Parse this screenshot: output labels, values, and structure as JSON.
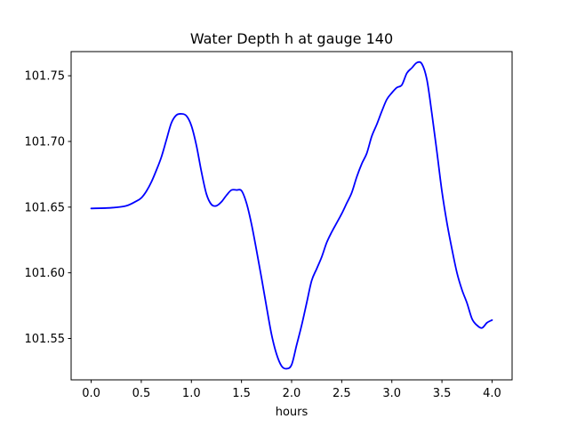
{
  "chart_data": {
    "type": "line",
    "title": "Water Depth h at gauge 140",
    "xlabel": "hours",
    "ylabel": "",
    "xlim": [
      -0.2,
      4.2
    ],
    "ylim": [
      101.5185,
      101.7684
    ],
    "x_ticks": [
      0.0,
      0.5,
      1.0,
      1.5,
      2.0,
      2.5,
      3.0,
      3.5,
      4.0
    ],
    "x_tick_labels": [
      "0.0",
      "0.5",
      "1.0",
      "1.5",
      "2.0",
      "2.5",
      "3.0",
      "3.5",
      "4.0"
    ],
    "y_ticks": [
      101.55,
      101.6,
      101.65,
      101.7,
      101.75
    ],
    "y_tick_labels": [
      "101.55",
      "101.60",
      "101.65",
      "101.70",
      "101.75"
    ],
    "grid": false,
    "series": [
      {
        "color": "#0000ff",
        "x": [
          0.0,
          0.2,
          0.35,
          0.45,
          0.5,
          0.55,
          0.6,
          0.65,
          0.7,
          0.75,
          0.8,
          0.85,
          0.9,
          0.95,
          1.0,
          1.05,
          1.1,
          1.15,
          1.2,
          1.25,
          1.3,
          1.35,
          1.4,
          1.45,
          1.5,
          1.55,
          1.6,
          1.65,
          1.7,
          1.75,
          1.8,
          1.85,
          1.9,
          1.95,
          2.0,
          2.05,
          2.1,
          2.15,
          2.2,
          2.25,
          2.3,
          2.35,
          2.4,
          2.45,
          2.5,
          2.55,
          2.6,
          2.65,
          2.7,
          2.75,
          2.8,
          2.85,
          2.9,
          2.95,
          3.0,
          3.05,
          3.1,
          3.15,
          3.2,
          3.25,
          3.3,
          3.35,
          3.4,
          3.45,
          3.5,
          3.55,
          3.6,
          3.65,
          3.7,
          3.75,
          3.8,
          3.85,
          3.9,
          3.95,
          4.0
        ],
        "y": [
          101.649,
          101.6495,
          101.651,
          101.6545,
          101.657,
          101.662,
          101.669,
          101.678,
          101.688,
          101.701,
          101.714,
          101.72,
          101.721,
          101.7195,
          101.712,
          101.697,
          101.677,
          101.66,
          101.652,
          101.651,
          101.654,
          101.659,
          101.663,
          101.663,
          101.6625,
          101.653,
          101.637,
          101.617,
          101.596,
          101.574,
          101.553,
          101.538,
          101.529,
          101.527,
          101.53,
          101.545,
          101.56,
          101.577,
          101.594,
          101.603,
          101.612,
          101.623,
          101.631,
          101.638,
          101.645,
          101.653,
          101.661,
          101.673,
          101.683,
          101.691,
          101.704,
          101.713,
          101.723,
          101.732,
          101.737,
          101.741,
          101.743,
          101.752,
          101.756,
          101.76,
          101.759,
          101.747,
          101.721,
          101.692,
          101.662,
          101.638,
          101.618,
          101.6,
          101.587,
          101.577,
          101.565,
          101.56,
          101.558,
          101.562,
          101.564
        ]
      }
    ]
  }
}
